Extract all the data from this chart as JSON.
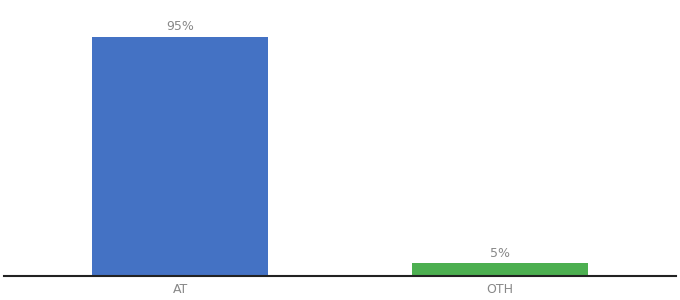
{
  "categories": [
    "AT",
    "OTH"
  ],
  "values": [
    95,
    5
  ],
  "bar_colors": [
    "#4472c4",
    "#4caf50"
  ],
  "value_labels": [
    "95%",
    "5%"
  ],
  "ylim": [
    0,
    108
  ],
  "background_color": "#ffffff",
  "bar_width": 0.55,
  "label_fontsize": 9,
  "tick_fontsize": 9,
  "label_color": "#888888",
  "tick_color": "#888888",
  "spine_color": "#222222"
}
